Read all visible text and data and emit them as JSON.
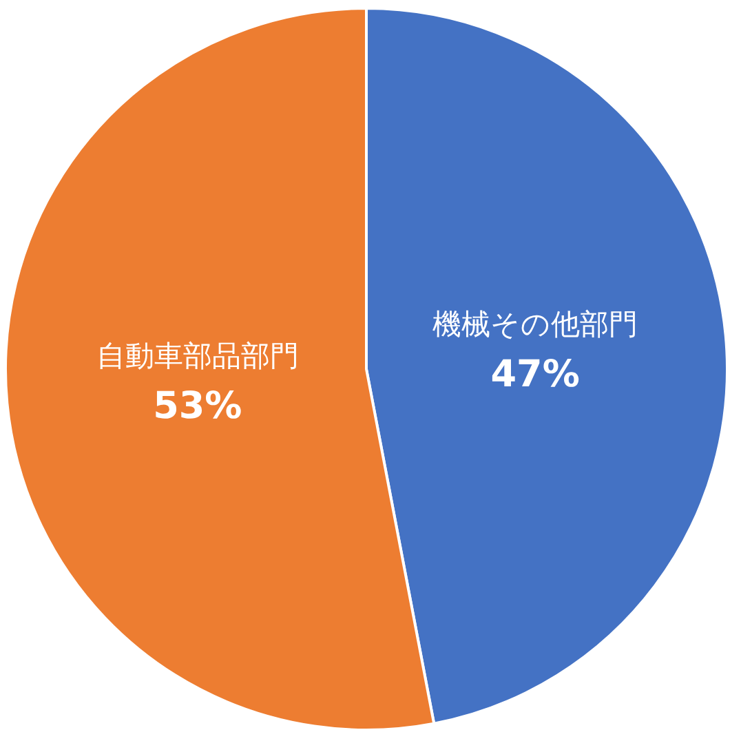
{
  "chart_data": {
    "type": "pie",
    "categories": [
      "機械その他部門",
      "自動車部品部門"
    ],
    "values": [
      47,
      53
    ],
    "colors": [
      "#4472c4",
      "#ed7d31"
    ],
    "value_labels": [
      "47%",
      "53%"
    ]
  }
}
